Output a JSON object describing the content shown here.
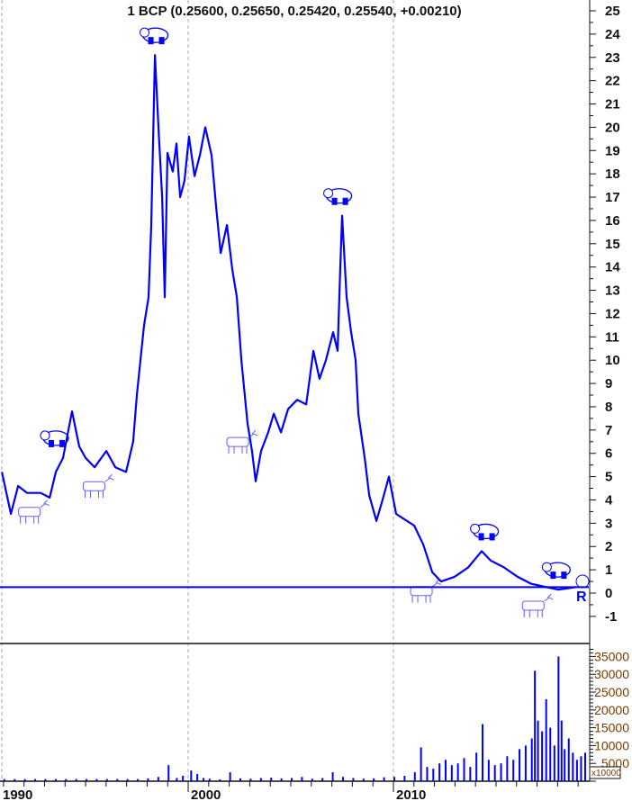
{
  "chart_data": [
    {
      "type": "line",
      "title": "1 BCP (0.25600, 0.25650, 0.25420, 0.25540, +0.00210)",
      "symbol": "BCP",
      "last_close": 0.2554,
      "x_tick_labels": [
        "1990",
        "2000",
        "2010"
      ],
      "y_tick_labels": [
        "25",
        "24",
        "23",
        "22",
        "21",
        "20",
        "19",
        "18",
        "17",
        "16",
        "15",
        "14",
        "13",
        "12",
        "11",
        "10",
        "9",
        "8",
        "7",
        "6",
        "5",
        "4",
        "3",
        "2",
        "1",
        "0",
        "-1"
      ],
      "ylim": [
        -2.2,
        25.5
      ],
      "xlim": [
        1990.83,
        2019.52
      ],
      "grid": "vertical dashed at decade labels",
      "series_color": "#0000ff",
      "x": [
        1990.92,
        1991.36,
        1991.71,
        1992.15,
        1992.81,
        1993.25,
        1993.55,
        1993.9,
        1994.34,
        1994.69,
        1995.0,
        1995.44,
        1996.01,
        1996.45,
        1996.97,
        1997.32,
        1997.5,
        1997.85,
        1998.07,
        1998.2,
        1998.38,
        1998.55,
        1998.73,
        1998.86,
        1998.99,
        1999.25,
        1999.43,
        1999.61,
        1999.82,
        2000.04,
        2000.31,
        2000.57,
        2000.83,
        2001.14,
        2001.36,
        2001.58,
        2001.89,
        2002.15,
        2002.37,
        2002.59,
        2002.89,
        2003.11,
        2003.29,
        2003.55,
        2003.9,
        2004.17,
        2004.52,
        2004.87,
        2005.31,
        2005.75,
        2006.1,
        2006.4,
        2006.71,
        2007.06,
        2007.28,
        2007.41,
        2007.5,
        2007.72,
        2007.94,
        2008.16,
        2008.29,
        2008.6,
        2008.82,
        2009.17,
        2009.47,
        2009.78,
        2010.13,
        2010.48,
        2011.01,
        2011.45,
        2011.89,
        2012.32,
        2012.98,
        2013.64,
        2014.3,
        2014.74,
        2015.39,
        2016.05,
        2016.71,
        2017.37,
        2018.03,
        2018.9
      ],
      "y": [
        5.2,
        3.4,
        4.6,
        4.3,
        4.3,
        4.1,
        5.2,
        5.8,
        7.8,
        6.3,
        5.8,
        5.4,
        6.1,
        5.4,
        5.2,
        6.5,
        8.5,
        11.5,
        12.7,
        15.8,
        23.1,
        20.0,
        17.0,
        12.7,
        18.9,
        18.1,
        19.3,
        17.0,
        17.7,
        19.6,
        17.9,
        18.8,
        20.0,
        18.8,
        16.6,
        14.6,
        15.8,
        13.9,
        12.7,
        10.0,
        7.3,
        6.1,
        4.8,
        6.1,
        6.9,
        7.7,
        6.9,
        7.9,
        8.3,
        8.1,
        10.4,
        9.2,
        10.0,
        11.2,
        10.4,
        13.9,
        16.2,
        12.7,
        11.2,
        10.0,
        7.7,
        5.8,
        4.2,
        3.1,
        4.0,
        5.0,
        3.4,
        3.2,
        2.9,
        2.1,
        0.9,
        0.5,
        0.7,
        1.1,
        1.8,
        1.4,
        1.1,
        0.7,
        0.4,
        0.27,
        0.15,
        0.26
      ],
      "markers": {
        "bear": [
          1998.4,
          1993.55,
          2007.35,
          2014.5,
          2018.0
        ],
        "bull": [
          1992.35,
          1995.5,
          2002.5,
          2011.45,
          2016.9
        ]
      }
    },
    {
      "type": "bar",
      "ylabel_multiplier": "x10000",
      "y_tick_labels": [
        "35000",
        "30000",
        "25000",
        "20000",
        "15000",
        "10000",
        "5000"
      ],
      "ylim": [
        0,
        37000
      ],
      "series_color": "#0000ff",
      "x": [
        1991.0,
        1991.5,
        1992.0,
        1992.5,
        1993.0,
        1993.5,
        1994.0,
        1994.5,
        1995.0,
        1995.5,
        1996.0,
        1996.5,
        1997.0,
        1997.5,
        1998.0,
        1998.5,
        1999.0,
        1999.4,
        1999.7,
        2000.1,
        2000.4,
        2000.7,
        2001.0,
        2001.5,
        2002.0,
        2002.5,
        2003.0,
        2003.5,
        2004.0,
        2004.5,
        2005.0,
        2005.5,
        2006.0,
        2006.5,
        2007.0,
        2007.5,
        2008.0,
        2008.5,
        2009.0,
        2009.5,
        2010.0,
        2010.5,
        2011.0,
        2011.3,
        2011.6,
        2011.9,
        2012.2,
        2012.5,
        2012.8,
        2013.1,
        2013.4,
        2013.7,
        2014.0,
        2014.3,
        2014.6,
        2014.9,
        2015.2,
        2015.5,
        2015.8,
        2016.1,
        2016.4,
        2016.7,
        2016.85,
        2017.0,
        2017.2,
        2017.4,
        2017.6,
        2017.8,
        2018.0,
        2018.15,
        2018.3,
        2018.5,
        2018.7,
        2018.9,
        2019.1,
        2019.3
      ],
      "values": [
        600,
        600,
        600,
        600,
        600,
        600,
        600,
        600,
        600,
        600,
        600,
        600,
        600,
        600,
        800,
        1200,
        4500,
        900,
        1500,
        3000,
        2000,
        900,
        700,
        500,
        2500,
        800,
        700,
        900,
        1000,
        800,
        900,
        1200,
        700,
        900,
        2500,
        1200,
        900,
        700,
        800,
        1100,
        1200,
        1500,
        2500,
        9500,
        4000,
        3500,
        5000,
        6000,
        4500,
        5000,
        6500,
        4000,
        8000,
        16000,
        6000,
        4500,
        5000,
        7000,
        6000,
        9000,
        10000,
        12000,
        31000,
        17000,
        14000,
        23000,
        15000,
        10000,
        35000,
        17000,
        9000,
        12000,
        8000,
        6000,
        7000,
        8000
      ]
    }
  ],
  "end_labels": {
    "r_marker": "R"
  }
}
